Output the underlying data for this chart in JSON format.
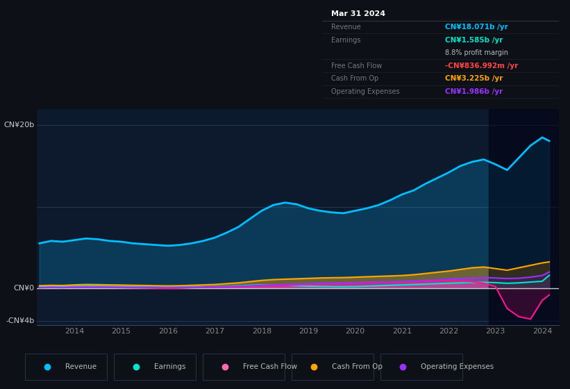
{
  "background_color": "#0d1117",
  "plot_bg_color": "#0d1a2e",
  "ylabel_20b": "CN¥20b",
  "ylabel_0": "CN¥0",
  "ylabel_neg4b": "-CN¥4b",
  "ylim": [
    -4.5,
    22
  ],
  "years": [
    2013.25,
    2013.5,
    2013.75,
    2014.0,
    2014.25,
    2014.5,
    2014.75,
    2015.0,
    2015.25,
    2015.5,
    2015.75,
    2016.0,
    2016.25,
    2016.5,
    2016.75,
    2017.0,
    2017.25,
    2017.5,
    2017.75,
    2018.0,
    2018.25,
    2018.5,
    2018.75,
    2019.0,
    2019.25,
    2019.5,
    2019.75,
    2020.0,
    2020.25,
    2020.5,
    2020.75,
    2021.0,
    2021.25,
    2021.5,
    2021.75,
    2022.0,
    2022.25,
    2022.5,
    2022.75,
    2023.0,
    2023.25,
    2023.5,
    2023.75,
    2024.0,
    2024.15
  ],
  "revenue": [
    5.5,
    5.8,
    5.7,
    5.9,
    6.1,
    6.0,
    5.8,
    5.7,
    5.5,
    5.4,
    5.3,
    5.2,
    5.3,
    5.5,
    5.8,
    6.2,
    6.8,
    7.5,
    8.5,
    9.5,
    10.2,
    10.5,
    10.3,
    9.8,
    9.5,
    9.3,
    9.2,
    9.5,
    9.8,
    10.2,
    10.8,
    11.5,
    12.0,
    12.8,
    13.5,
    14.2,
    15.0,
    15.5,
    15.8,
    15.2,
    14.5,
    16.0,
    17.5,
    18.5,
    18.07
  ],
  "earnings": [
    0.15,
    0.18,
    0.2,
    0.22,
    0.25,
    0.23,
    0.2,
    0.18,
    0.15,
    0.12,
    0.1,
    0.08,
    0.1,
    0.12,
    0.15,
    0.18,
    0.22,
    0.28,
    0.35,
    0.4,
    0.38,
    0.35,
    0.3,
    0.25,
    0.22,
    0.2,
    0.18,
    0.2,
    0.25,
    0.3,
    0.35,
    0.4,
    0.45,
    0.5,
    0.55,
    0.6,
    0.65,
    0.7,
    0.72,
    0.68,
    0.6,
    0.65,
    0.75,
    0.85,
    1.585
  ],
  "free_cash_flow": [
    0.05,
    0.08,
    0.06,
    0.1,
    0.12,
    0.1,
    0.08,
    0.06,
    0.04,
    0.02,
    0.0,
    -0.02,
    0.0,
    0.05,
    0.08,
    0.1,
    0.12,
    0.15,
    0.2,
    0.25,
    0.28,
    0.32,
    0.4,
    0.45,
    0.5,
    0.55,
    0.58,
    0.6,
    0.65,
    0.7,
    0.72,
    0.75,
    0.8,
    0.82,
    0.85,
    0.88,
    0.85,
    0.8,
    0.6,
    0.2,
    -2.5,
    -3.5,
    -3.8,
    -1.5,
    -0.837
  ],
  "cash_from_op": [
    0.3,
    0.35,
    0.33,
    0.4,
    0.45,
    0.43,
    0.4,
    0.38,
    0.35,
    0.33,
    0.3,
    0.28,
    0.3,
    0.35,
    0.4,
    0.45,
    0.55,
    0.65,
    0.8,
    0.95,
    1.05,
    1.1,
    1.15,
    1.2,
    1.25,
    1.28,
    1.3,
    1.35,
    1.4,
    1.45,
    1.5,
    1.55,
    1.65,
    1.8,
    1.95,
    2.1,
    2.3,
    2.5,
    2.6,
    2.4,
    2.2,
    2.5,
    2.8,
    3.1,
    3.225
  ],
  "operating_expenses": [
    0.08,
    0.1,
    0.09,
    0.12,
    0.14,
    0.13,
    0.12,
    0.11,
    0.1,
    0.09,
    0.08,
    0.07,
    0.08,
    0.1,
    0.12,
    0.15,
    0.18,
    0.22,
    0.28,
    0.35,
    0.4,
    0.45,
    0.5,
    0.55,
    0.6,
    0.63,
    0.65,
    0.68,
    0.72,
    0.75,
    0.78,
    0.8,
    0.88,
    0.95,
    1.02,
    1.1,
    1.18,
    1.25,
    1.3,
    1.25,
    1.18,
    1.22,
    1.35,
    1.55,
    1.986
  ],
  "revenue_color": "#00bfff",
  "earnings_color": "#00e5cc",
  "free_cash_flow_color": "#ff1493",
  "cash_from_op_color": "#ffa500",
  "operating_expenses_color": "#9b30ff",
  "highlight_x_start": 2022.85,
  "xtick_years": [
    2014,
    2015,
    2016,
    2017,
    2018,
    2019,
    2020,
    2021,
    2022,
    2023,
    2024
  ],
  "tooltip_title": "Mar 31 2024",
  "tooltip_revenue_label": "Revenue",
  "tooltip_revenue_val": "CN¥18.071b",
  "tooltip_earnings_label": "Earnings",
  "tooltip_earnings_val": "CN¥1.585b",
  "tooltip_margin": "8.8%",
  "tooltip_margin_suffix": " profit margin",
  "tooltip_fcf_label": "Free Cash Flow",
  "tooltip_fcf_val": "-CN¥836.992m",
  "tooltip_fcf_color": "#ff4444",
  "tooltip_cashop_label": "Cash From Op",
  "tooltip_cashop_val": "CN¥3.225b",
  "tooltip_opex_label": "Operating Expenses",
  "tooltip_opex_val": "CN¥1.986b",
  "legend_items": [
    {
      "label": "Revenue",
      "color": "#00bfff"
    },
    {
      "label": "Earnings",
      "color": "#00e5cc"
    },
    {
      "label": "Free Cash Flow",
      "color": "#ff69b4"
    },
    {
      "label": "Cash From Op",
      "color": "#ffa500"
    },
    {
      "label": "Operating Expenses",
      "color": "#9b30ff"
    }
  ]
}
